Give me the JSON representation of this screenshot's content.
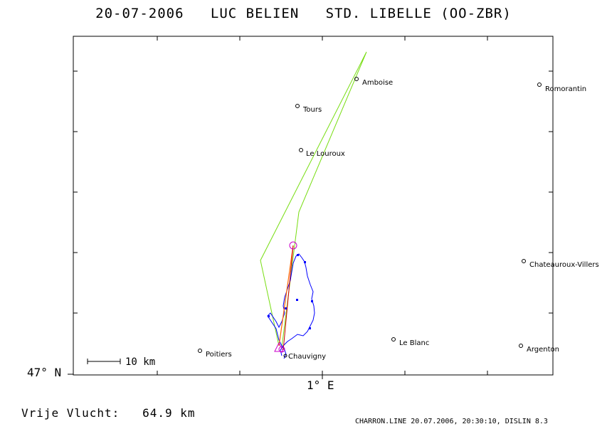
{
  "title": "20-07-2006   LUC BELIEN   STD. LIBELLE (OO-ZBR)",
  "axes": {
    "latitude_label": "47° N",
    "longitude_label": "1° E"
  },
  "scale_bar": {
    "label": "10 km"
  },
  "distance_text": "Vrije Vlucht:   64.9 km",
  "footer": "CHARRON.LINE 20.07.2006, 20:30:10, DISLIN 8.3",
  "towns": [
    {
      "name": "Amboise"
    },
    {
      "name": "Romorantin"
    },
    {
      "name": "Tours"
    },
    {
      "name": "Le Louroux"
    },
    {
      "name": "Chateauroux-Villers"
    },
    {
      "name": "Le Blanc"
    },
    {
      "name": "Argenton"
    },
    {
      "name": "Poitiers"
    },
    {
      "name": "Chauvigny"
    }
  ],
  "colors": {
    "task_line": "#77dd11",
    "flight_track": "#0000ff",
    "free_flight": "#ff6600",
    "turnpoint": "#cc00cc",
    "frame": "#000000"
  }
}
